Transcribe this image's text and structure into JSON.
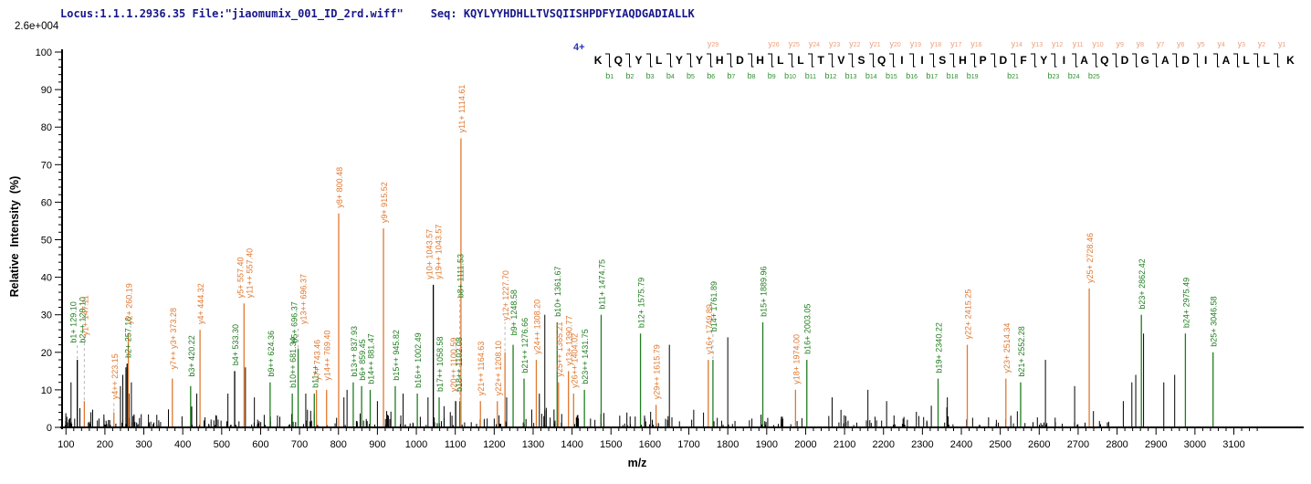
{
  "header": {
    "locus_file": "Locus:1.1.1.2936.35 File:\"jiaomumix_001_ID_2rd.wiff\"",
    "seq_prefix": "Seq: ",
    "sequence": "KQYLYYHDHLLTVSQIISHPDFYIAQDGADIALLK",
    "base_peak_intensity": "2.6e+004"
  },
  "annotation": {
    "charge": "4+",
    "residues": [
      "K",
      "Q",
      "Y",
      "L",
      "Y",
      "Y",
      "H",
      "D",
      "H",
      "L",
      "L",
      "T",
      "V",
      "S",
      "Q",
      "I",
      "I",
      "S",
      "H",
      "P",
      "D",
      "F",
      "Y",
      "I",
      "A",
      "Q",
      "D",
      "G",
      "A",
      "D",
      "I",
      "A",
      "L",
      "L",
      "K"
    ],
    "y_ions": {
      "6": "y29",
      "9": "y26",
      "10": "y25",
      "11": "y24",
      "12": "y23",
      "13": "y22",
      "14": "y21",
      "15": "y20",
      "16": "y19",
      "17": "y18",
      "18": "y17",
      "19": "y16",
      "21": "y14",
      "22": "y13",
      "23": "y12",
      "24": "y11",
      "25": "y10",
      "26": "y9",
      "27": "y8",
      "28": "y7",
      "29": "y6",
      "30": "y5",
      "31": "y4",
      "32": "y3",
      "33": "y2",
      "34": "y1"
    },
    "b_ions": {
      "1": "b1",
      "2": "b2",
      "3": "b3",
      "4": "b4",
      "5": "b5",
      "6": "b6",
      "7": "b7",
      "8": "b8",
      "9": "b9",
      "10": "b10",
      "11": "b11",
      "12": "b12",
      "13": "b13",
      "14": "b14",
      "15": "b15",
      "16": "b16",
      "17": "b17",
      "18": "b18",
      "19": "b19",
      "21": "b21",
      "23": "b23",
      "24": "b24",
      "25": "b25"
    }
  },
  "chart_data": {
    "type": "bar",
    "subtype": "ms2-fragment-spectrum",
    "xlabel": "m/z",
    "ylabel": "Relative  Intensity  (%)",
    "xlim": [
      90,
      3270
    ],
    "ylim": [
      0,
      100
    ],
    "x_tick_min": 100,
    "x_tick_max": 3100,
    "x_major_tick": 100,
    "x_minor_tick": 20,
    "x_minor_max": 3160,
    "y_major_tick": 10,
    "y_minor_tick": 2,
    "grid": false,
    "legend": false,
    "peaks": [
      {
        "mz": 129.1,
        "h": 18,
        "c": "k",
        "labels": [
          {
            "t": "b1+ 129.10",
            "i": "b",
            "f": 22,
            "dx": -4
          },
          {
            "t": "b2++ 129.10",
            "i": "b",
            "f": 22,
            "dx": 6
          }
        ]
      },
      {
        "mz": 147.11,
        "h": 7,
        "c": "y",
        "labels": [
          {
            "t": "y1+ 147.11",
            "i": "y",
            "f": 24
          }
        ]
      },
      {
        "mz": 223.15,
        "h": 4,
        "c": "y",
        "labels": [
          {
            "t": "y4++ 223.15",
            "i": "y",
            "f": 7
          }
        ]
      },
      {
        "mz": 257.16,
        "h": 17,
        "c": "k",
        "labels": [
          {
            "t": "b2+ 257.16",
            "i": "b",
            "f": 18
          }
        ]
      },
      {
        "mz": 260.19,
        "h": 25,
        "c": "y",
        "labels": [
          {
            "t": "y2+ 260.19",
            "i": "y",
            "f": 27
          }
        ]
      },
      {
        "mz": 373.28,
        "h": 13,
        "c": "y",
        "labels": [
          {
            "t": "y7++ y3+ 373.28",
            "i": "y",
            "f": 15
          }
        ]
      },
      {
        "mz": 420.22,
        "h": 11,
        "c": "b",
        "labels": [
          {
            "t": "b3+ 420.22",
            "i": "b",
            "f": 13
          }
        ]
      },
      {
        "mz": 444.32,
        "h": 26,
        "c": "y",
        "labels": [
          {
            "t": "y4+ 444.32",
            "i": "y",
            "f": 27
          }
        ]
      },
      {
        "mz": 533.3,
        "h": 15,
        "c": "k",
        "labels": [
          {
            "t": "b4+ 533.30",
            "i": "b",
            "f": 16
          }
        ]
      },
      {
        "mz": 557.4,
        "h": 33,
        "c": "y",
        "labels": [
          {
            "t": "y5+ 557.40",
            "i": "y",
            "f": 34,
            "dx": -4
          },
          {
            "t": "y11++ 557.40",
            "i": "y",
            "f": 34,
            "dx": 6
          }
        ]
      },
      {
        "mz": 624.36,
        "h": 12,
        "c": "b",
        "labels": [
          {
            "t": "b9++ 624.36",
            "i": "b",
            "f": 13
          }
        ]
      },
      {
        "mz": 681.34,
        "h": 9,
        "c": "b",
        "labels": [
          {
            "t": "b10++ 681.34",
            "i": "b",
            "f": 10
          }
        ]
      },
      {
        "mz": 696.37,
        "h": 21,
        "c": "b",
        "labels": [
          {
            "t": "b5+ 696.37",
            "i": "b",
            "f": 22,
            "dx": -4
          },
          {
            "t": "y13++ 696.37",
            "i": "y",
            "f": 27,
            "dx": 6
          }
        ]
      },
      {
        "mz": 737.88,
        "h": 9,
        "c": "b",
        "labels": [
          {
            "t": "b11++",
            "i": "b",
            "f": 10
          }
        ]
      },
      {
        "mz": 743.46,
        "h": 10,
        "c": "y",
        "labels": [
          {
            "t": "y7+ 743.46",
            "i": "y",
            "f": 12
          }
        ]
      },
      {
        "mz": 769.4,
        "h": 10,
        "c": "y",
        "labels": [
          {
            "t": "y14++ 769.40",
            "i": "y",
            "f": 12
          }
        ]
      },
      {
        "mz": 800.48,
        "h": 57,
        "c": "y",
        "labels": [
          {
            "t": "y8+ 800.48",
            "i": "y",
            "f": 58
          }
        ]
      },
      {
        "mz": 837.93,
        "h": 12,
        "c": "b",
        "labels": [
          {
            "t": "b13++ 837.93",
            "i": "b",
            "f": 13
          }
        ]
      },
      {
        "mz": 859.45,
        "h": 11,
        "c": "b",
        "labels": [
          {
            "t": "b6+ 859.45",
            "i": "b",
            "f": 12
          }
        ]
      },
      {
        "mz": 881.47,
        "h": 10,
        "c": "b",
        "labels": [
          {
            "t": "b14++ 881.47",
            "i": "b",
            "f": 11
          }
        ]
      },
      {
        "mz": 915.52,
        "h": 53,
        "c": "y",
        "labels": [
          {
            "t": "y9+ 915.52",
            "i": "y",
            "f": 54
          }
        ]
      },
      {
        "mz": 945.82,
        "h": 11,
        "c": "b",
        "labels": [
          {
            "t": "b15++ 945.82",
            "i": "b",
            "f": 12
          }
        ]
      },
      {
        "mz": 1002.49,
        "h": 9,
        "c": "b",
        "labels": [
          {
            "t": "b16++ 1002.49",
            "i": "b",
            "f": 10
          }
        ]
      },
      {
        "mz": 1043.57,
        "h": 38,
        "c": "k",
        "labels": [
          {
            "t": "y10+ 1043.57",
            "i": "y",
            "f": 39,
            "dx": -4
          },
          {
            "t": "y19++ 1043.57",
            "i": "y",
            "f": 39,
            "dx": 6
          }
        ]
      },
      {
        "mz": 1058.58,
        "h": 8,
        "c": "b",
        "labels": [
          {
            "t": "b17++ 1058.58",
            "i": "b",
            "f": 9
          }
        ]
      },
      {
        "mz": 1101.0,
        "h": 7,
        "c": "k",
        "labels": [
          {
            "t": "y20++ 1100.59",
            "i": "y",
            "f": 9,
            "dx": -2
          },
          {
            "t": "b18++ 1102.08",
            "i": "b",
            "f": 9,
            "dx": 4
          }
        ]
      },
      {
        "mz": 1111.53,
        "h": 7,
        "c": "b",
        "labels": [
          {
            "t": "b8+ 1111.53",
            "i": "b",
            "f": 34
          }
        ]
      },
      {
        "mz": 1114.61,
        "h": 77,
        "c": "y",
        "labels": [
          {
            "t": "y11+ 1114.61",
            "i": "y",
            "f": 78
          }
        ]
      },
      {
        "mz": 1164.63,
        "h": 7,
        "c": "y",
        "labels": [
          {
            "t": "y21++ 1164.63",
            "i": "y",
            "f": 8
          }
        ]
      },
      {
        "mz": 1208.1,
        "h": 7,
        "c": "y",
        "labels": [
          {
            "t": "y22++ 1208.10",
            "i": "y",
            "f": 8
          }
        ]
      },
      {
        "mz": 1227.7,
        "h": 20,
        "c": "y",
        "labels": [
          {
            "t": "y12+ 1227.70",
            "i": "y",
            "f": 28
          }
        ]
      },
      {
        "mz": 1248.58,
        "h": 22,
        "c": "b",
        "labels": [
          {
            "t": "b9+ 1248.58",
            "i": "b",
            "f": 24
          }
        ]
      },
      {
        "mz": 1276.66,
        "h": 13,
        "c": "b",
        "labels": [
          {
            "t": "b21++ 1276.66",
            "i": "b",
            "f": 14
          }
        ]
      },
      {
        "mz": 1308.2,
        "h": 18,
        "c": "y",
        "labels": [
          {
            "t": "y24++ 1308.20",
            "i": "y",
            "f": 19
          }
        ]
      },
      {
        "mz": 1361.67,
        "h": 28,
        "c": "b",
        "labels": [
          {
            "t": "b10+ 1361.67",
            "i": "b",
            "f": 29
          }
        ]
      },
      {
        "mz": 1365.21,
        "h": 12,
        "c": "y",
        "labels": [
          {
            "t": "y25++ 1365.21",
            "i": "y",
            "f": 13
          }
        ]
      },
      {
        "mz": 1390.77,
        "h": 15,
        "c": "y",
        "labels": [
          {
            "t": "y13+ 1390.77",
            "i": "y",
            "f": 16
          }
        ]
      },
      {
        "mz": 1404.02,
        "h": 9,
        "c": "y",
        "labels": [
          {
            "t": "y26++ 1404.02",
            "i": "y",
            "f": 10
          }
        ]
      },
      {
        "mz": 1431.75,
        "h": 10,
        "c": "b",
        "labels": [
          {
            "t": "b23++ 1431.75",
            "i": "b",
            "f": 11
          }
        ]
      },
      {
        "mz": 1474.75,
        "h": 30,
        "c": "b",
        "labels": [
          {
            "t": "b11+ 1474.75",
            "i": "b",
            "f": 31
          }
        ]
      },
      {
        "mz": 1575.79,
        "h": 25,
        "c": "b",
        "labels": [
          {
            "t": "b12+ 1575.79",
            "i": "b",
            "f": 26
          }
        ]
      },
      {
        "mz": 1615.79,
        "h": 6,
        "c": "y",
        "labels": [
          {
            "t": "y29++ 1615.79",
            "i": "y",
            "f": 7
          }
        ]
      },
      {
        "mz": 1749.89,
        "h": 18,
        "c": "y",
        "labels": [
          {
            "t": "y16+ 1749.89",
            "i": "y",
            "f": 19
          }
        ]
      },
      {
        "mz": 1761.89,
        "h": 18,
        "c": "b",
        "labels": [
          {
            "t": "b14+ 1761.89",
            "i": "b",
            "f": 25
          }
        ]
      },
      {
        "mz": 1889.96,
        "h": 28,
        "c": "b",
        "labels": [
          {
            "t": "b15+ 1889.96",
            "i": "b",
            "f": 29
          }
        ]
      },
      {
        "mz": 1974.0,
        "h": 10,
        "c": "y",
        "labels": [
          {
            "t": "y18+ 1974.00",
            "i": "y",
            "f": 11
          }
        ]
      },
      {
        "mz": 2003.05,
        "h": 18,
        "c": "b",
        "labels": [
          {
            "t": "b16+ 2003.05",
            "i": "b",
            "f": 19
          }
        ]
      },
      {
        "mz": 2340.22,
        "h": 13,
        "c": "b",
        "labels": [
          {
            "t": "b19+ 2340.22",
            "i": "b",
            "f": 14
          }
        ]
      },
      {
        "mz": 2415.25,
        "h": 22,
        "c": "y",
        "labels": [
          {
            "t": "y22+ 2415.25",
            "i": "y",
            "f": 23
          }
        ]
      },
      {
        "mz": 2514.34,
        "h": 13,
        "c": "y",
        "labels": [
          {
            "t": "y23+ 2514.34",
            "i": "y",
            "f": 14
          }
        ]
      },
      {
        "mz": 2552.28,
        "h": 12,
        "c": "b",
        "labels": [
          {
            "t": "b21+ 2552.28",
            "i": "b",
            "f": 13
          }
        ]
      },
      {
        "mz": 2728.46,
        "h": 37,
        "c": "y",
        "labels": [
          {
            "t": "y25+ 2728.46",
            "i": "y",
            "f": 38
          }
        ]
      },
      {
        "mz": 2862.42,
        "h": 30,
        "c": "b",
        "labels": [
          {
            "t": "b23+ 2862.42",
            "i": "b",
            "f": 31
          }
        ]
      },
      {
        "mz": 2975.49,
        "h": 25,
        "c": "b",
        "labels": [
          {
            "t": "b24+ 2975.49",
            "i": "b",
            "f": 26
          }
        ]
      },
      {
        "mz": 3046.58,
        "h": 20,
        "c": "b",
        "labels": [
          {
            "t": "b25+ 3046.58",
            "i": "b",
            "f": 21
          }
        ]
      }
    ],
    "extra_peaks": [
      [
        113,
        12
      ],
      [
        240,
        11
      ],
      [
        246,
        14
      ],
      [
        254,
        16
      ],
      [
        262,
        9
      ],
      [
        268,
        12
      ],
      [
        436,
        9
      ],
      [
        516,
        9
      ],
      [
        561,
        16
      ],
      [
        584,
        8
      ],
      [
        716,
        9
      ],
      [
        814,
        8
      ],
      [
        822,
        10
      ],
      [
        900,
        7
      ],
      [
        966,
        9
      ],
      [
        1030,
        8
      ],
      [
        1232,
        8
      ],
      [
        1316,
        9
      ],
      [
        1330,
        30
      ],
      [
        1650,
        22
      ],
      [
        1800,
        24
      ],
      [
        2068,
        8
      ],
      [
        2160,
        10
      ],
      [
        2208,
        7
      ],
      [
        2364,
        8
      ],
      [
        2616,
        18
      ],
      [
        2691,
        11
      ],
      [
        2816,
        7
      ],
      [
        2838,
        12
      ],
      [
        2848,
        14
      ],
      [
        2868,
        25
      ],
      [
        2920,
        12
      ],
      [
        2948,
        14
      ]
    ],
    "noise": {
      "seed": 11,
      "count": 330,
      "mz_min": 96,
      "mz_max": 2780,
      "h_base": 0.6,
      "h_var": 5.5,
      "skew": 1.35
    }
  },
  "colors": {
    "b_ion": "#1f7d1f",
    "y_ion": "#e07830",
    "peak_default": "#000000",
    "seq_y": "#f09d78",
    "seq_b": "#2f8f2f",
    "charge": "#2233bb",
    "header": "#18188c",
    "dash": "#b4b4b4",
    "axis": "#000000"
  }
}
